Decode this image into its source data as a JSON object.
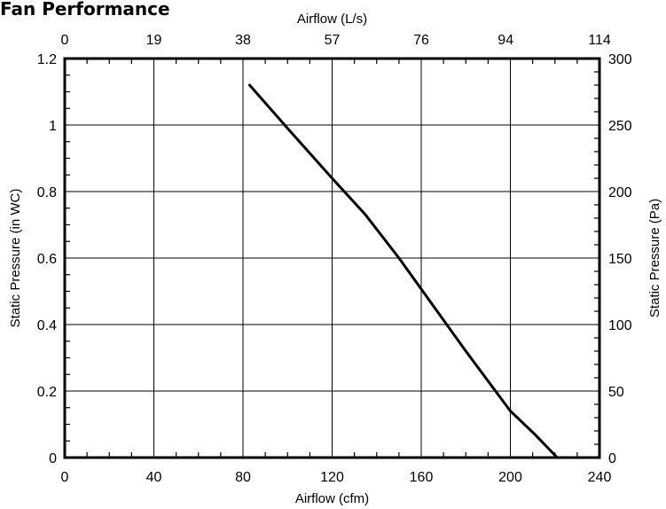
{
  "chart_data": {
    "type": "line",
    "title": "Fan Performance",
    "xlabel": "Airflow (cfm)",
    "ylabel": "Static Pressure (in WC)",
    "x2label": "Airflow (L/s)",
    "y2label": "Static Pressure (Pa)",
    "xlim": [
      0,
      240
    ],
    "ylim": [
      0,
      1.2
    ],
    "x_ticks": [
      0,
      40,
      80,
      120,
      160,
      200,
      240
    ],
    "y_ticks": [
      0,
      0.2,
      0.4,
      0.6,
      0.8,
      1,
      1.2
    ],
    "x2_ticks": [
      0,
      19,
      38,
      57,
      76,
      94,
      114
    ],
    "y2_ticks": [
      0,
      50,
      100,
      150,
      200,
      250,
      300
    ],
    "x_tick_labels": [
      "0",
      "40",
      "80",
      "120",
      "160",
      "200",
      "240"
    ],
    "y_tick_labels": [
      "0",
      "0.2",
      "0.4",
      "0.6",
      "0.8",
      "1",
      "1.2"
    ],
    "x2_tick_labels": [
      "0",
      "19",
      "38",
      "57",
      "76",
      "94",
      "114"
    ],
    "y2_tick_labels": [
      "0",
      "50",
      "100",
      "150",
      "200",
      "250",
      "300"
    ],
    "grid": true,
    "series": [
      {
        "x": [
          83,
          100,
          120,
          135,
          150,
          165,
          180,
          200,
          211,
          221
        ],
        "y": [
          1.12,
          0.99,
          0.84,
          0.73,
          0.6,
          0.46,
          0.32,
          0.14,
          0.07,
          0.0
        ]
      }
    ]
  }
}
